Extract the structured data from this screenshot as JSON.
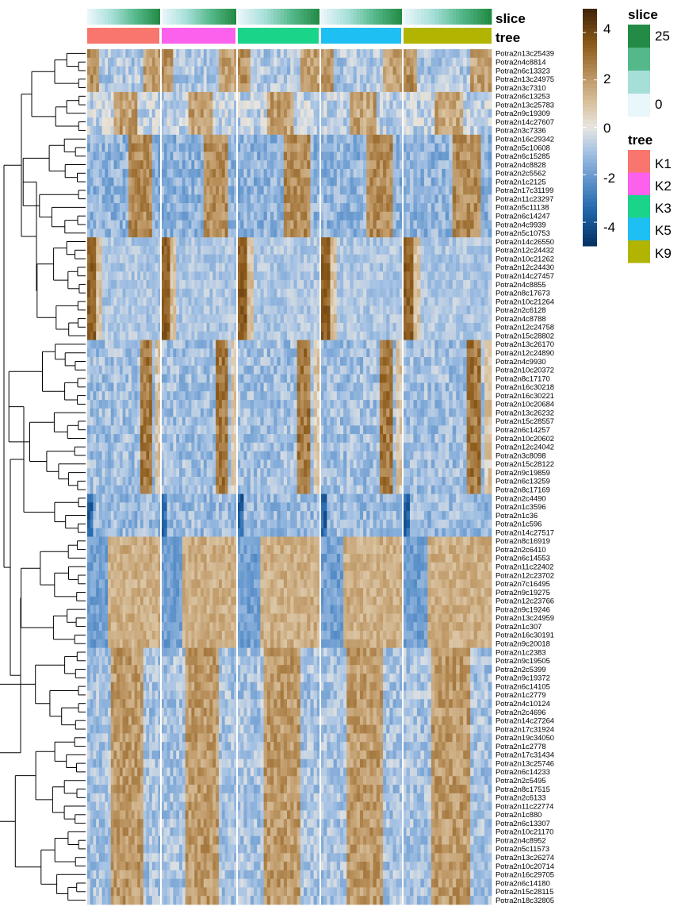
{
  "chart_data": {
    "type": "heatmap",
    "row_labels": [
      "Potra2n13c25439",
      "Potra2n4c8814",
      "Potra2n6c13323",
      "Potra2n13c24975",
      "Potra2n3c7310",
      "Potra2n6c13253",
      "Potra2n13c25783",
      "Potra2n9c19309",
      "Potra2n14c27607",
      "Potra2n3c7336",
      "Potra2n16c29342",
      "Potra2n5c10608",
      "Potra2n6c15285",
      "Potra2n4c8828",
      "Potra2n2c5562",
      "Potra2n1c2125",
      "Potra2n17c31199",
      "Potra2n11c23297",
      "Potra2n5c11138",
      "Potra2n6c14247",
      "Potra2n4c9939",
      "Potra2n5c10753",
      "Potra2n14c26550",
      "Potra2n12c24432",
      "Potra2n10c21262",
      "Potra2n12c24430",
      "Potra2n14c27457",
      "Potra2n4c8855",
      "Potra2n8c17673",
      "Potra2n10c21264",
      "Potra2n2c6128",
      "Potra2n4c8788",
      "Potra2n12c24758",
      "Potra2n15c28802",
      "Potra2n13c26170",
      "Potra2n12c24890",
      "Potra2n4c9930",
      "Potra2n10c20372",
      "Potra2n8c17170",
      "Potra2n16c30218",
      "Potra2n16c30221",
      "Potra2n10c20684",
      "Potra2n13c26232",
      "Potra2n15c28557",
      "Potra2n6c14257",
      "Potra2n10c20602",
      "Potra2n12c24042",
      "Potra2n3c8098",
      "Potra2n15c28122",
      "Potra2n9c19859",
      "Potra2n6c13259",
      "Potra2n8c17169",
      "Potra2n2c4490",
      "Potra2n1c3596",
      "Potra2n1c36",
      "Potra2n1c596",
      "Potra2n14c27517",
      "Potra2n8c16919",
      "Potra2n2c6410",
      "Potra2n6c14553",
      "Potra2n11c22402",
      "Potra2n12c23702",
      "Potra2n7c16495",
      "Potra2n9c19275",
      "Potra2n12c23766",
      "Potra2n9c19246",
      "Potra2n13c24959",
      "Potra2n1c307",
      "Potra2n16c30191",
      "Potra2n9c20018",
      "Potra2n1c2383",
      "Potra2n9c19505",
      "Potra2n2c5399",
      "Potra2n9c19372",
      "Potra2n6c14105",
      "Potra2n1c2779",
      "Potra2n4c10124",
      "Potra2n2c4696",
      "Potra2n14c27264",
      "Potra2n17c31924",
      "Potra2n19c34050",
      "Potra2n1c2778",
      "Potra2n17c31434",
      "Potra2n13c25746",
      "Potra2n6c14233",
      "Potra2n2c5495",
      "Potra2n8c17515",
      "Potra2n2c6133",
      "Potra2n11c22774",
      "Potra2n1c880",
      "Potra2n6c13307",
      "Potra2n10c21170",
      "Potra2n4c8952",
      "Potra2n5c11573",
      "Potra2n13c26274",
      "Potra2n10c20714",
      "Potra2n16c29705",
      "Potra2n6c14180",
      "Potra2n15c28115",
      "Potra2n18c32805"
    ],
    "column_groups": [
      "K1",
      "K2",
      "K3",
      "K5",
      "K9"
    ],
    "slice_range": [
      0,
      25
    ],
    "color_scale": {
      "range": [
        -5,
        5
      ],
      "ticks": [
        4,
        2,
        0,
        -2,
        -4
      ],
      "stops": [
        {
          "v": -5,
          "c": "#053061"
        },
        {
          "v": -3.5,
          "c": "#2166ac"
        },
        {
          "v": -2,
          "c": "#6c9cd0"
        },
        {
          "v": -1,
          "c": "#a7c3e4"
        },
        {
          "v": 0,
          "c": "#e8e6e1"
        },
        {
          "v": 1,
          "c": "#d9c2a0"
        },
        {
          "v": 2,
          "c": "#c09a68"
        },
        {
          "v": 3.5,
          "c": "#8c5a1a"
        },
        {
          "v": 5,
          "c": "#3e2308"
        }
      ]
    },
    "row_clusters": [
      {
        "profile": "A",
        "count": 5
      },
      {
        "profile": "B",
        "count": 5
      },
      {
        "profile": "C",
        "count": 12
      },
      {
        "profile": "D",
        "count": 12
      },
      {
        "profile": "E",
        "count": 18
      },
      {
        "profile": "F",
        "count": 5
      },
      {
        "profile": "G",
        "count": 13
      },
      {
        "profile": "H",
        "count": 30
      }
    ]
  },
  "annotations": {
    "slice_title": "slice",
    "tree_title": "tree",
    "tree_colors": {
      "K1": "#f8766d",
      "K2": "#fb61ec",
      "K3": "#1ad489",
      "K5": "#1ebff3",
      "K9": "#b1b501"
    },
    "slice_colors": [
      "#e9f6fa",
      "#a6dfd8",
      "#55b88a",
      "#238b45"
    ]
  },
  "legend": {
    "colorbar_ticks": [
      "4",
      "2",
      "0",
      "-2",
      "-4"
    ],
    "slice_title": "slice",
    "slice_labels": [
      "25",
      "0"
    ],
    "tree_title": "tree",
    "tree_labels": [
      "K1",
      "K2",
      "K3",
      "K5",
      "K9"
    ]
  }
}
